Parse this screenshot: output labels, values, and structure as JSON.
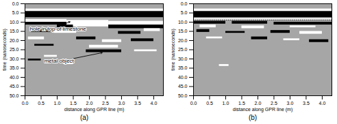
{
  "chart_data": [
    {
      "type": "rect",
      "title": "(a)",
      "x_label": "distance along GPR line (m)",
      "y_label": "time (nanoseconds)",
      "color": "#a6a6a6",
      "xlim": [
        0,
        4.3
      ],
      "ylim": [
        0,
        50
      ],
      "xticks": [
        {
          "value": 0,
          "label": "0.0"
        },
        {
          "value": 0.5,
          "label": "0.5"
        },
        {
          "value": 1,
          "label": "1.0"
        },
        {
          "value": 1.5,
          "label": "1.5"
        },
        {
          "value": 2,
          "label": "2.0"
        },
        {
          "value": 2.5,
          "label": "2.5"
        },
        {
          "value": 3,
          "label": "3.0"
        },
        {
          "value": 3.5,
          "label": "3.5"
        },
        {
          "value": 4,
          "label": "4.0"
        }
      ],
      "yticks": [
        {
          "value": 0,
          "label": "0.0"
        },
        {
          "value": 5,
          "label": "5.0"
        },
        {
          "value": 10,
          "label": "10.0"
        },
        {
          "value": 15,
          "label": "15.0"
        },
        {
          "value": 20,
          "label": "20.0"
        },
        {
          "value": 25,
          "label": "25.0"
        },
        {
          "value": 30,
          "label": "30.0"
        },
        {
          "value": 35,
          "label": "35.0"
        },
        {
          "value": 40,
          "label": "40.0"
        },
        {
          "value": 45,
          "label": "45.0"
        },
        {
          "value": 50,
          "label": "50.0"
        }
      ],
      "rects": [
        {
          "x1": 0,
          "x2": 4.3,
          "y1": 2.8,
          "y2": 4.0,
          "color": "white"
        },
        {
          "x1": 0,
          "x2": 4.3,
          "y1": 4.2,
          "y2": 7.5,
          "color": "black"
        },
        {
          "x1": 0,
          "x2": 1.3,
          "y1": 8.5,
          "y2": 10,
          "color": "white"
        },
        {
          "x1": 0,
          "x2": 1.3,
          "y1": 10,
          "y2": 11.5,
          "color": "black"
        },
        {
          "x1": 1.3,
          "x2": 2.6,
          "y1": 9,
          "y2": 12.5,
          "color": "white"
        },
        {
          "x1": 1.0,
          "x2": 1.5,
          "y1": 11.5,
          "y2": 13,
          "color": "black"
        },
        {
          "x1": 2.6,
          "x2": 4.3,
          "y1": 9.5,
          "y2": 11.5,
          "color": "white"
        },
        {
          "x1": 2.6,
          "x2": 4.3,
          "y1": 11.5,
          "y2": 13.5,
          "color": "black"
        },
        {
          "x1": 0.2,
          "x2": 0.8,
          "y1": 14,
          "y2": 15.5,
          "color": "black"
        },
        {
          "x1": 0.9,
          "x2": 1.6,
          "y1": 14.5,
          "y2": 16,
          "color": "white"
        },
        {
          "x1": 2.9,
          "x2": 3.6,
          "y1": 15,
          "y2": 16.5,
          "color": "black"
        },
        {
          "x1": 3.7,
          "x2": 4.2,
          "y1": 13.5,
          "y2": 15,
          "color": "white"
        },
        {
          "x1": 0.1,
          "x2": 0.6,
          "y1": 18,
          "y2": 19.5,
          "color": "white"
        },
        {
          "x1": 1.6,
          "x2": 2.2,
          "y1": 18,
          "y2": 19.5,
          "color": "black"
        },
        {
          "x1": 2.4,
          "x2": 3.0,
          "y1": 19.5,
          "y2": 21,
          "color": "white"
        },
        {
          "x1": 3.3,
          "x2": 4.0,
          "y1": 19,
          "y2": 20.5,
          "color": "black"
        },
        {
          "x1": 0.3,
          "x2": 0.9,
          "y1": 22,
          "y2": 23,
          "color": "black"
        },
        {
          "x1": 2.0,
          "x2": 2.9,
          "y1": 22.5,
          "y2": 24,
          "color": "white"
        },
        {
          "x1": 1.9,
          "x2": 3.0,
          "y1": 25,
          "y2": 26.5,
          "color": "black"
        },
        {
          "x1": 3.4,
          "x2": 4.1,
          "y1": 25,
          "y2": 26,
          "color": "white"
        },
        {
          "x1": 0.6,
          "x2": 1.0,
          "y1": 28,
          "y2": 29,
          "color": "white"
        },
        {
          "x1": 0.1,
          "x2": 0.5,
          "y1": 30,
          "y2": 31,
          "color": "black"
        },
        {
          "x1": 1.2,
          "x2": 1.5,
          "y1": 32,
          "y2": 33,
          "color": "white"
        }
      ],
      "annotations": [
        {
          "text": "hole in top of limestone",
          "x": 0.15,
          "y": 13.5,
          "ax": 1.4,
          "ay": 9.8
        },
        {
          "text": "metal object",
          "x": 0.6,
          "y": 31,
          "ax": 2.4,
          "ay": 26.6
        }
      ]
    },
    {
      "type": "rect",
      "title": "(b)",
      "x_label": "distance along GPR line (m)",
      "y_label": "time (nanoseconds)",
      "color": "#a6a6a6",
      "xlim": [
        0,
        4.3
      ],
      "ylim": [
        0,
        50
      ],
      "xticks": [
        {
          "value": 0,
          "label": "0.0"
        },
        {
          "value": 0.5,
          "label": "0.5"
        },
        {
          "value": 1,
          "label": "1.0"
        },
        {
          "value": 1.5,
          "label": "1.5"
        },
        {
          "value": 2,
          "label": "2.0"
        },
        {
          "value": 2.5,
          "label": "2.5"
        },
        {
          "value": 3,
          "label": "3.0"
        },
        {
          "value": 3.5,
          "label": "3.5"
        },
        {
          "value": 4,
          "label": "4.0"
        }
      ],
      "yticks": [
        {
          "value": 0,
          "label": "0.0"
        },
        {
          "value": 5,
          "label": "5.0"
        },
        {
          "value": 10,
          "label": "10.0"
        },
        {
          "value": 15,
          "label": "15.0"
        },
        {
          "value": 20,
          "label": "20.0"
        },
        {
          "value": 25,
          "label": "25.0"
        },
        {
          "value": 30,
          "label": "30.0"
        },
        {
          "value": 35,
          "label": "35.0"
        },
        {
          "value": 40,
          "label": "40.0"
        },
        {
          "value": 45,
          "label": "45.0"
        },
        {
          "value": 50,
          "label": "50.0"
        }
      ],
      "rects": [
        {
          "x1": 0,
          "x2": 4.3,
          "y1": 2.8,
          "y2": 4.0,
          "color": "white"
        },
        {
          "x1": 0,
          "x2": 4.3,
          "y1": 4.2,
          "y2": 7.5,
          "color": "black"
        },
        {
          "x1": 0,
          "x2": 4.3,
          "y1": 8,
          "y2": 8.8,
          "color": "white"
        },
        {
          "x1": 0,
          "x2": 1.0,
          "y1": 9.5,
          "y2": 11,
          "color": "black"
        },
        {
          "x1": 1.2,
          "x2": 2.3,
          "y1": 9.5,
          "y2": 11,
          "color": "black"
        },
        {
          "x1": 2.5,
          "x2": 4.3,
          "y1": 10,
          "y2": 11.5,
          "color": "black"
        },
        {
          "x1": 0.2,
          "x2": 0.7,
          "y1": 11.5,
          "y2": 13,
          "color": "white"
        },
        {
          "x1": 1.5,
          "x2": 2.2,
          "y1": 12,
          "y2": 13.5,
          "color": "white"
        },
        {
          "x1": 3.0,
          "x2": 3.8,
          "y1": 12,
          "y2": 13,
          "color": "white"
        },
        {
          "x1": 0.1,
          "x2": 0.5,
          "y1": 14,
          "y2": 15.5,
          "color": "black"
        },
        {
          "x1": 1.0,
          "x2": 1.6,
          "y1": 15,
          "y2": 16,
          "color": "black"
        },
        {
          "x1": 2.4,
          "x2": 3.0,
          "y1": 14.5,
          "y2": 16,
          "color": "black"
        },
        {
          "x1": 3.3,
          "x2": 4.0,
          "y1": 15,
          "y2": 16.5,
          "color": "white"
        },
        {
          "x1": 0.4,
          "x2": 0.9,
          "y1": 18,
          "y2": 19,
          "color": "white"
        },
        {
          "x1": 1.8,
          "x2": 2.3,
          "y1": 18,
          "y2": 19.5,
          "color": "black"
        },
        {
          "x1": 2.8,
          "x2": 3.3,
          "y1": 19,
          "y2": 20,
          "color": "white"
        },
        {
          "x1": 3.6,
          "x2": 4.2,
          "y1": 19.5,
          "y2": 21,
          "color": "black"
        },
        {
          "x1": 0.8,
          "x2": 1.1,
          "y1": 33,
          "y2": 34,
          "color": "white"
        }
      ],
      "lines": [
        {
          "y": 8.8,
          "line_style": "dotted"
        }
      ]
    }
  ]
}
